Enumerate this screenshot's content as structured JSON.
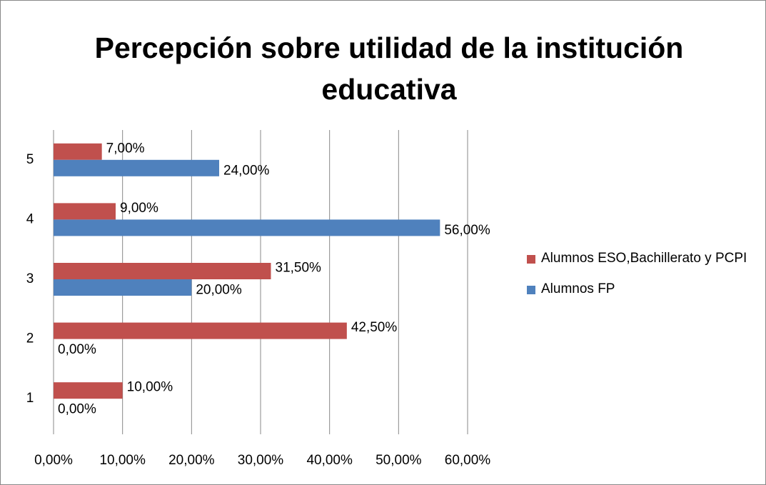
{
  "chart_data": {
    "type": "hbar",
    "title": "Percepción sobre utilidad de la institución educativa",
    "categories": [
      "1",
      "2",
      "3",
      "4",
      "5"
    ],
    "series": [
      {
        "name": "Alumnos ESO,Bachillerato y PCPI",
        "color": "#c0504d",
        "values": [
          10,
          42.5,
          31.5,
          9,
          7
        ],
        "value_labels": [
          "10,00%",
          "42,50%",
          "31,50%",
          "9,00%",
          "7,00%"
        ]
      },
      {
        "name": "Alumnos FP",
        "color": "#4f81bd",
        "values": [
          0,
          0,
          20,
          56,
          24
        ],
        "value_labels": [
          "0,00%",
          "0,00%",
          "20,00%",
          "56,00%",
          "24,00%"
        ]
      }
    ],
    "xlim": [
      0,
      60
    ],
    "xticks": [
      {
        "value": 0,
        "label": "0,00%"
      },
      {
        "value": 10,
        "label": "10,00%"
      },
      {
        "value": 20,
        "label": "20,00%"
      },
      {
        "value": 30,
        "label": "30,00%"
      },
      {
        "value": 40,
        "label": "40,00%"
      },
      {
        "value": 50,
        "label": "50,00%"
      },
      {
        "value": 60,
        "label": "60,00%"
      }
    ],
    "grid": true,
    "legend": "right"
  }
}
